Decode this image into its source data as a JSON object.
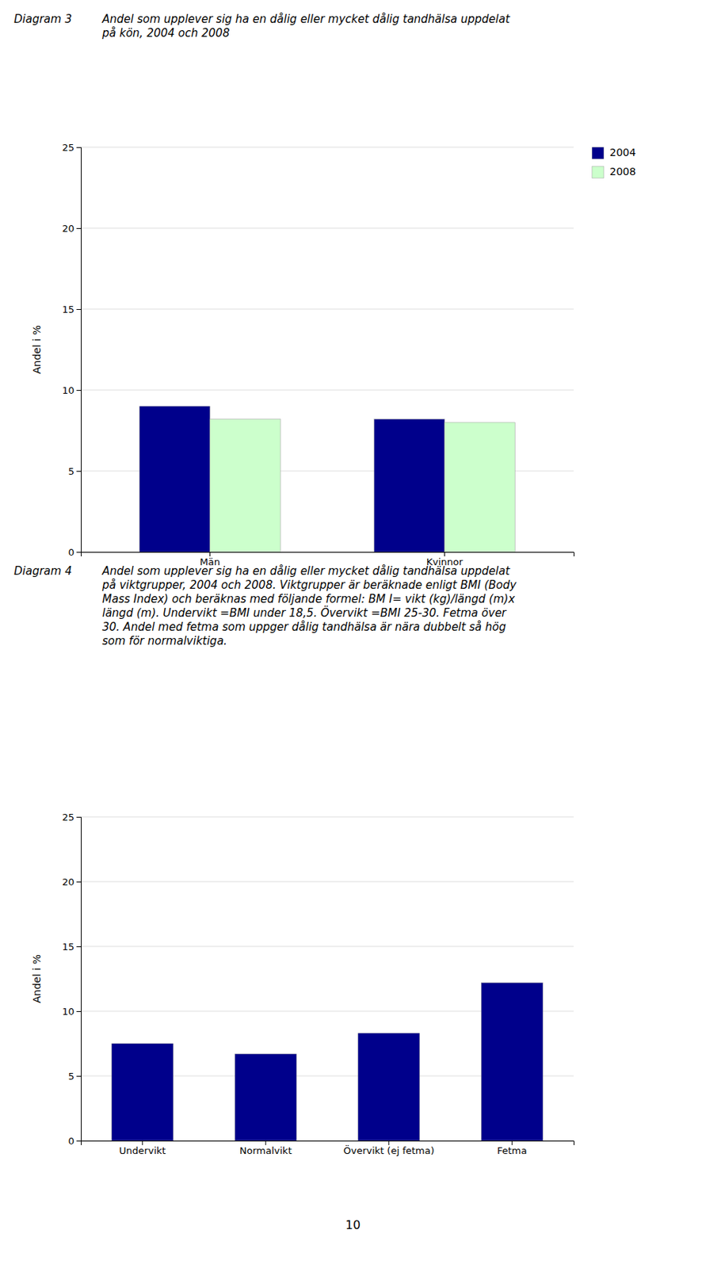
{
  "chart_data": [
    {
      "type": "bar",
      "title": "Diagram 3",
      "subtitle": "Andel som upplever sig ha en dålig eller mycket dålig tandhälsa uppdelat\npå kön, 2004 och 2008",
      "categories": [
        "Män",
        "Kvinnor"
      ],
      "series": [
        {
          "name": "2004",
          "color": "#00008B",
          "values": [
            9.0,
            8.2
          ]
        },
        {
          "name": "2008",
          "color": "#ccffcc",
          "values": [
            8.2,
            8.0
          ]
        }
      ],
      "ylabel": "Andel i %",
      "ylim": [
        0,
        25
      ],
      "yticks": [
        0,
        5,
        10,
        15,
        20,
        25
      ],
      "grid": true,
      "legend": "upper right"
    },
    {
      "type": "bar",
      "title": "Diagram 4",
      "subtitle": "Andel som upplever sig ha en dålig eller mycket dålig tandhälsa uppdelat\npå viktgrupper, 2004 och 2008. Viktgrupper är beräknade enligt BMI (Body\nMass Index) och beräknas med följande formel: BM I= vikt (kg)/längd (m)x\nlängd (m). Undervikt =BMI under 18,5. Övervikt =BMI 25-30. Fetma över\n30. Andel med fetma som uppger dålig tandhälsa är nära dubbelt så hög\nsom för normalviktiga.",
      "categories": [
        "Undervikt",
        "Normalvikt",
        "Övervikt (ej fetma)",
        "Fetma"
      ],
      "values": [
        7.5,
        6.7,
        8.3,
        12.2
      ],
      "color": "#00008B",
      "ylabel": "Andel i %",
      "ylim": [
        0,
        25
      ],
      "yticks": [
        0,
        5,
        10,
        15,
        20,
        25
      ],
      "grid": true
    }
  ],
  "page_number": "10"
}
